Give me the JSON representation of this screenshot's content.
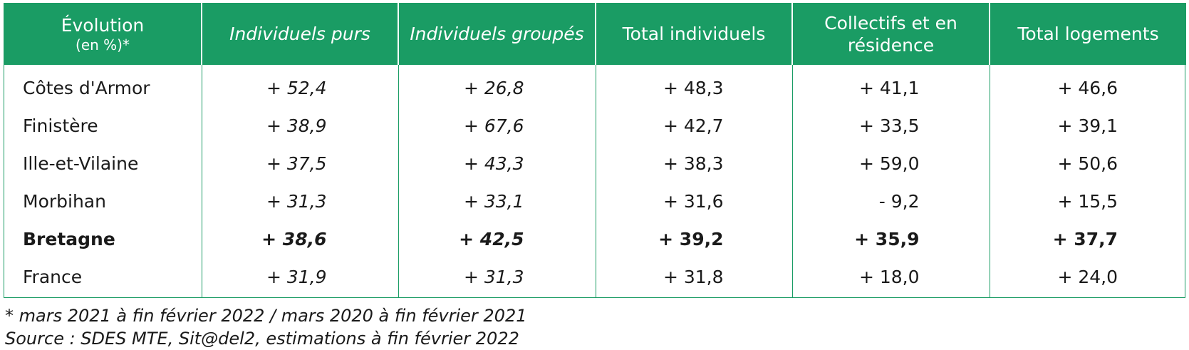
{
  "table": {
    "headers": [
      {
        "label": "Évolution",
        "sub": "(en %)*",
        "italic": false
      },
      {
        "label": "Individuels purs",
        "italic": true
      },
      {
        "label": "Individuels groupés",
        "italic": true
      },
      {
        "label": "Total individuels",
        "italic": false
      },
      {
        "label": "Collectifs et en résidence",
        "italic": false
      },
      {
        "label": "Total logements",
        "italic": false
      }
    ],
    "rows": [
      {
        "name": "Côtes d'Armor",
        "values": [
          "+ 52,4",
          "+ 26,8",
          "+ 48,3",
          "+ 41,1",
          "+ 46,6"
        ],
        "bold": false
      },
      {
        "name": "Finistère",
        "values": [
          "+ 38,9",
          "+ 67,6",
          "+ 42,7",
          "+ 33,5",
          "+ 39,1"
        ],
        "bold": false
      },
      {
        "name": "Ille-et-Vilaine",
        "values": [
          "+ 37,5",
          "+ 43,3",
          "+ 38,3",
          "+ 59,0",
          "+ 50,6"
        ],
        "bold": false
      },
      {
        "name": "Morbihan",
        "values": [
          "+ 31,3",
          "+ 33,1",
          "+ 31,6",
          "- 9,2",
          "+ 15,5"
        ],
        "bold": false
      },
      {
        "name": "Bretagne",
        "values": [
          "+ 38,6",
          "+ 42,5",
          "+ 39,2",
          "+ 35,9",
          "+ 37,7"
        ],
        "bold": true
      },
      {
        "name": "France",
        "values": [
          "+ 31,9",
          "+ 31,3",
          "+ 31,8",
          "+ 18,0",
          "+ 24,0"
        ],
        "bold": false
      }
    ]
  },
  "notes": {
    "period": "* mars 2021 à fin février 2022 /  mars 2020 à fin février 2021",
    "source": "Source : SDES MTE, Sit@del2, estimations à fin février 2022"
  },
  "colors": {
    "header_bg": "#1a9c64",
    "header_text": "#ffffff",
    "grid": "#1a9c64"
  }
}
